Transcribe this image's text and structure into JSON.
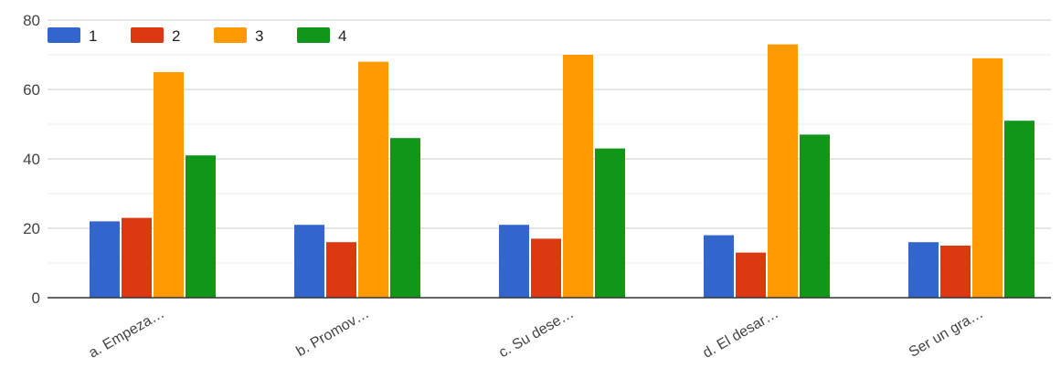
{
  "chart_data": {
    "type": "bar",
    "categories": [
      "a. Empeza…",
      "b. Promov…",
      "c. Su dese…",
      "d. El desar…",
      "Ser un gra…"
    ],
    "series": [
      {
        "name": "1",
        "values": [
          22,
          21,
          21,
          18,
          16
        ],
        "color": "#3366cc"
      },
      {
        "name": "2",
        "values": [
          23,
          16,
          17,
          13,
          15
        ],
        "color": "#dc3912"
      },
      {
        "name": "3",
        "values": [
          65,
          68,
          70,
          73,
          69
        ],
        "color": "#ff9900"
      },
      {
        "name": "4",
        "values": [
          41,
          46,
          43,
          47,
          51
        ],
        "color": "#109618"
      }
    ],
    "ylim": [
      0,
      80
    ],
    "yticks": [
      0,
      20,
      40,
      60,
      80
    ],
    "grid": true,
    "legend_position": "top-left"
  }
}
